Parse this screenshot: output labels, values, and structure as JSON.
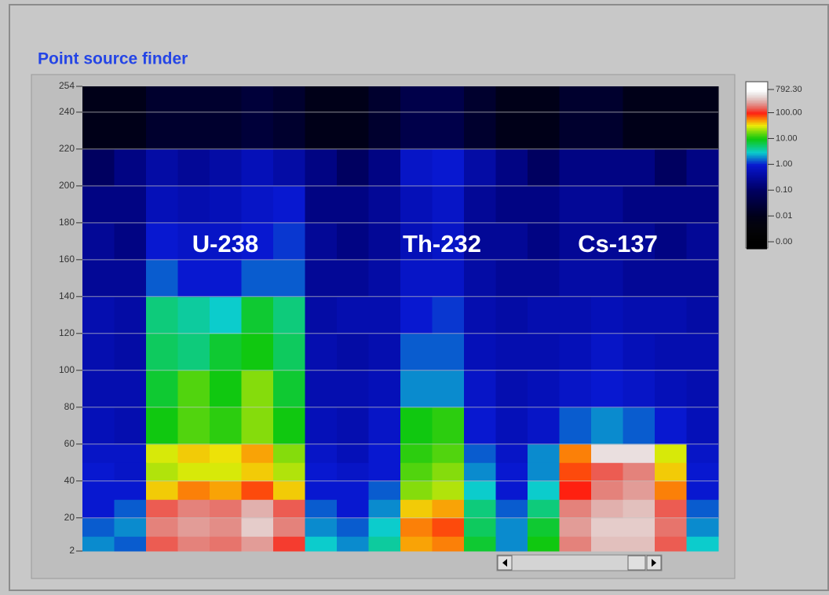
{
  "chart_data": {
    "type": "heatmap",
    "title": "Point source finder",
    "ybins": [
      2,
      10,
      20,
      30,
      40,
      50,
      60,
      80,
      100,
      120,
      140,
      160,
      180,
      200,
      220,
      254
    ],
    "values": [
      [
        2,
        1.5,
        150,
        200,
        180,
        250,
        120,
        3,
        2,
        4,
        50,
        60,
        8,
        2,
        10,
        200,
        350,
        350,
        150,
        3
      ],
      [
        1.5,
        2,
        200,
        250,
        220,
        400,
        200,
        2,
        1.5,
        3,
        60,
        80,
        6,
        2,
        8,
        250,
        400,
        400,
        180,
        2
      ],
      [
        1,
        1.5,
        150,
        200,
        180,
        300,
        150,
        1.5,
        1,
        2,
        40,
        50,
        5,
        1.5,
        5,
        200,
        300,
        350,
        150,
        1.5
      ],
      [
        1,
        1,
        40,
        60,
        50,
        80,
        40,
        1,
        1,
        1.5,
        20,
        25,
        3,
        1,
        3,
        100,
        200,
        250,
        60,
        1
      ],
      [
        1,
        0.8,
        25,
        30,
        30,
        40,
        25,
        1,
        0.8,
        1,
        15,
        20,
        2,
        1,
        2,
        80,
        150,
        200,
        40,
        1
      ],
      [
        0.8,
        0.8,
        30,
        40,
        35,
        50,
        20,
        0.8,
        0.6,
        1,
        12,
        15,
        1.5,
        0.8,
        2,
        60,
        500,
        500,
        30,
        0.8
      ],
      [
        0.6,
        0.5,
        10,
        15,
        12,
        20,
        10,
        0.6,
        0.5,
        0.8,
        10,
        12,
        1,
        0.6,
        0.8,
        1.5,
        2,
        1.5,
        1,
        0.6
      ],
      [
        0.5,
        0.5,
        8,
        15,
        10,
        20,
        8,
        0.5,
        0.5,
        0.6,
        2,
        2,
        0.8,
        0.5,
        0.6,
        0.8,
        1,
        0.8,
        0.6,
        0.5
      ],
      [
        0.5,
        0.4,
        6,
        5,
        8,
        10,
        6,
        0.5,
        0.4,
        0.5,
        1.5,
        1.5,
        0.6,
        0.5,
        0.5,
        0.6,
        0.8,
        0.6,
        0.5,
        0.5
      ],
      [
        0.5,
        0.4,
        5,
        4,
        3,
        8,
        5,
        0.4,
        0.5,
        0.5,
        1,
        1.2,
        0.5,
        0.4,
        0.5,
        0.5,
        0.6,
        0.5,
        0.5,
        0.4
      ],
      [
        0.3,
        0.3,
        1.5,
        1,
        1,
        1.5,
        1.5,
        0.3,
        0.3,
        0.4,
        0.8,
        0.8,
        0.4,
        0.3,
        0.3,
        0.4,
        0.4,
        0.3,
        0.3,
        0.3
      ],
      [
        0.3,
        0.2,
        1,
        0.8,
        0.8,
        1,
        1.2,
        0.3,
        0.2,
        0.3,
        0.6,
        0.8,
        0.3,
        0.3,
        0.2,
        0.3,
        0.3,
        0.3,
        0.2,
        0.3
      ],
      [
        0.2,
        0.2,
        0.6,
        0.5,
        0.6,
        0.8,
        1,
        0.2,
        0.2,
        0.3,
        0.6,
        0.8,
        0.3,
        0.2,
        0.2,
        0.3,
        0.3,
        0.2,
        0.2,
        0.2
      ],
      [
        0.1,
        0.2,
        0.4,
        0.3,
        0.4,
        0.6,
        0.4,
        0.2,
        0.1,
        0.2,
        0.8,
        1,
        0.4,
        0.2,
        0.1,
        0.2,
        0.2,
        0.2,
        0.1,
        0.2
      ],
      [
        0.01,
        0.01,
        0.02,
        0.02,
        0.02,
        0.03,
        0.02,
        0.01,
        0.01,
        0.02,
        0.05,
        0.05,
        0.02,
        0.01,
        0.01,
        0.02,
        0.02,
        0.01,
        0.01,
        0.01
      ]
    ],
    "ylim": [
      2,
      254
    ],
    "yticks": [
      2,
      20,
      40,
      60,
      80,
      100,
      120,
      140,
      160,
      180,
      200,
      220,
      240,
      254
    ],
    "grid": true,
    "annotations": [
      "U-238",
      "Th-232",
      "Cs-137"
    ],
    "colorbar": {
      "ticks": [
        {
          "value": 0,
          "label": "0.00"
        },
        {
          "value": 0.01,
          "label": "0.01"
        },
        {
          "value": 0.1,
          "label": "0.10"
        },
        {
          "value": 1,
          "label": "1.00"
        },
        {
          "value": 10,
          "label": "10.00"
        },
        {
          "value": 100,
          "label": "100.00"
        },
        {
          "value": 792.3,
          "label": "792.30"
        }
      ],
      "colors": [
        "#000000",
        "#000018",
        "#000060",
        "#0818d0",
        "#10c810",
        "#ff2010",
        "#ffffff"
      ]
    }
  }
}
